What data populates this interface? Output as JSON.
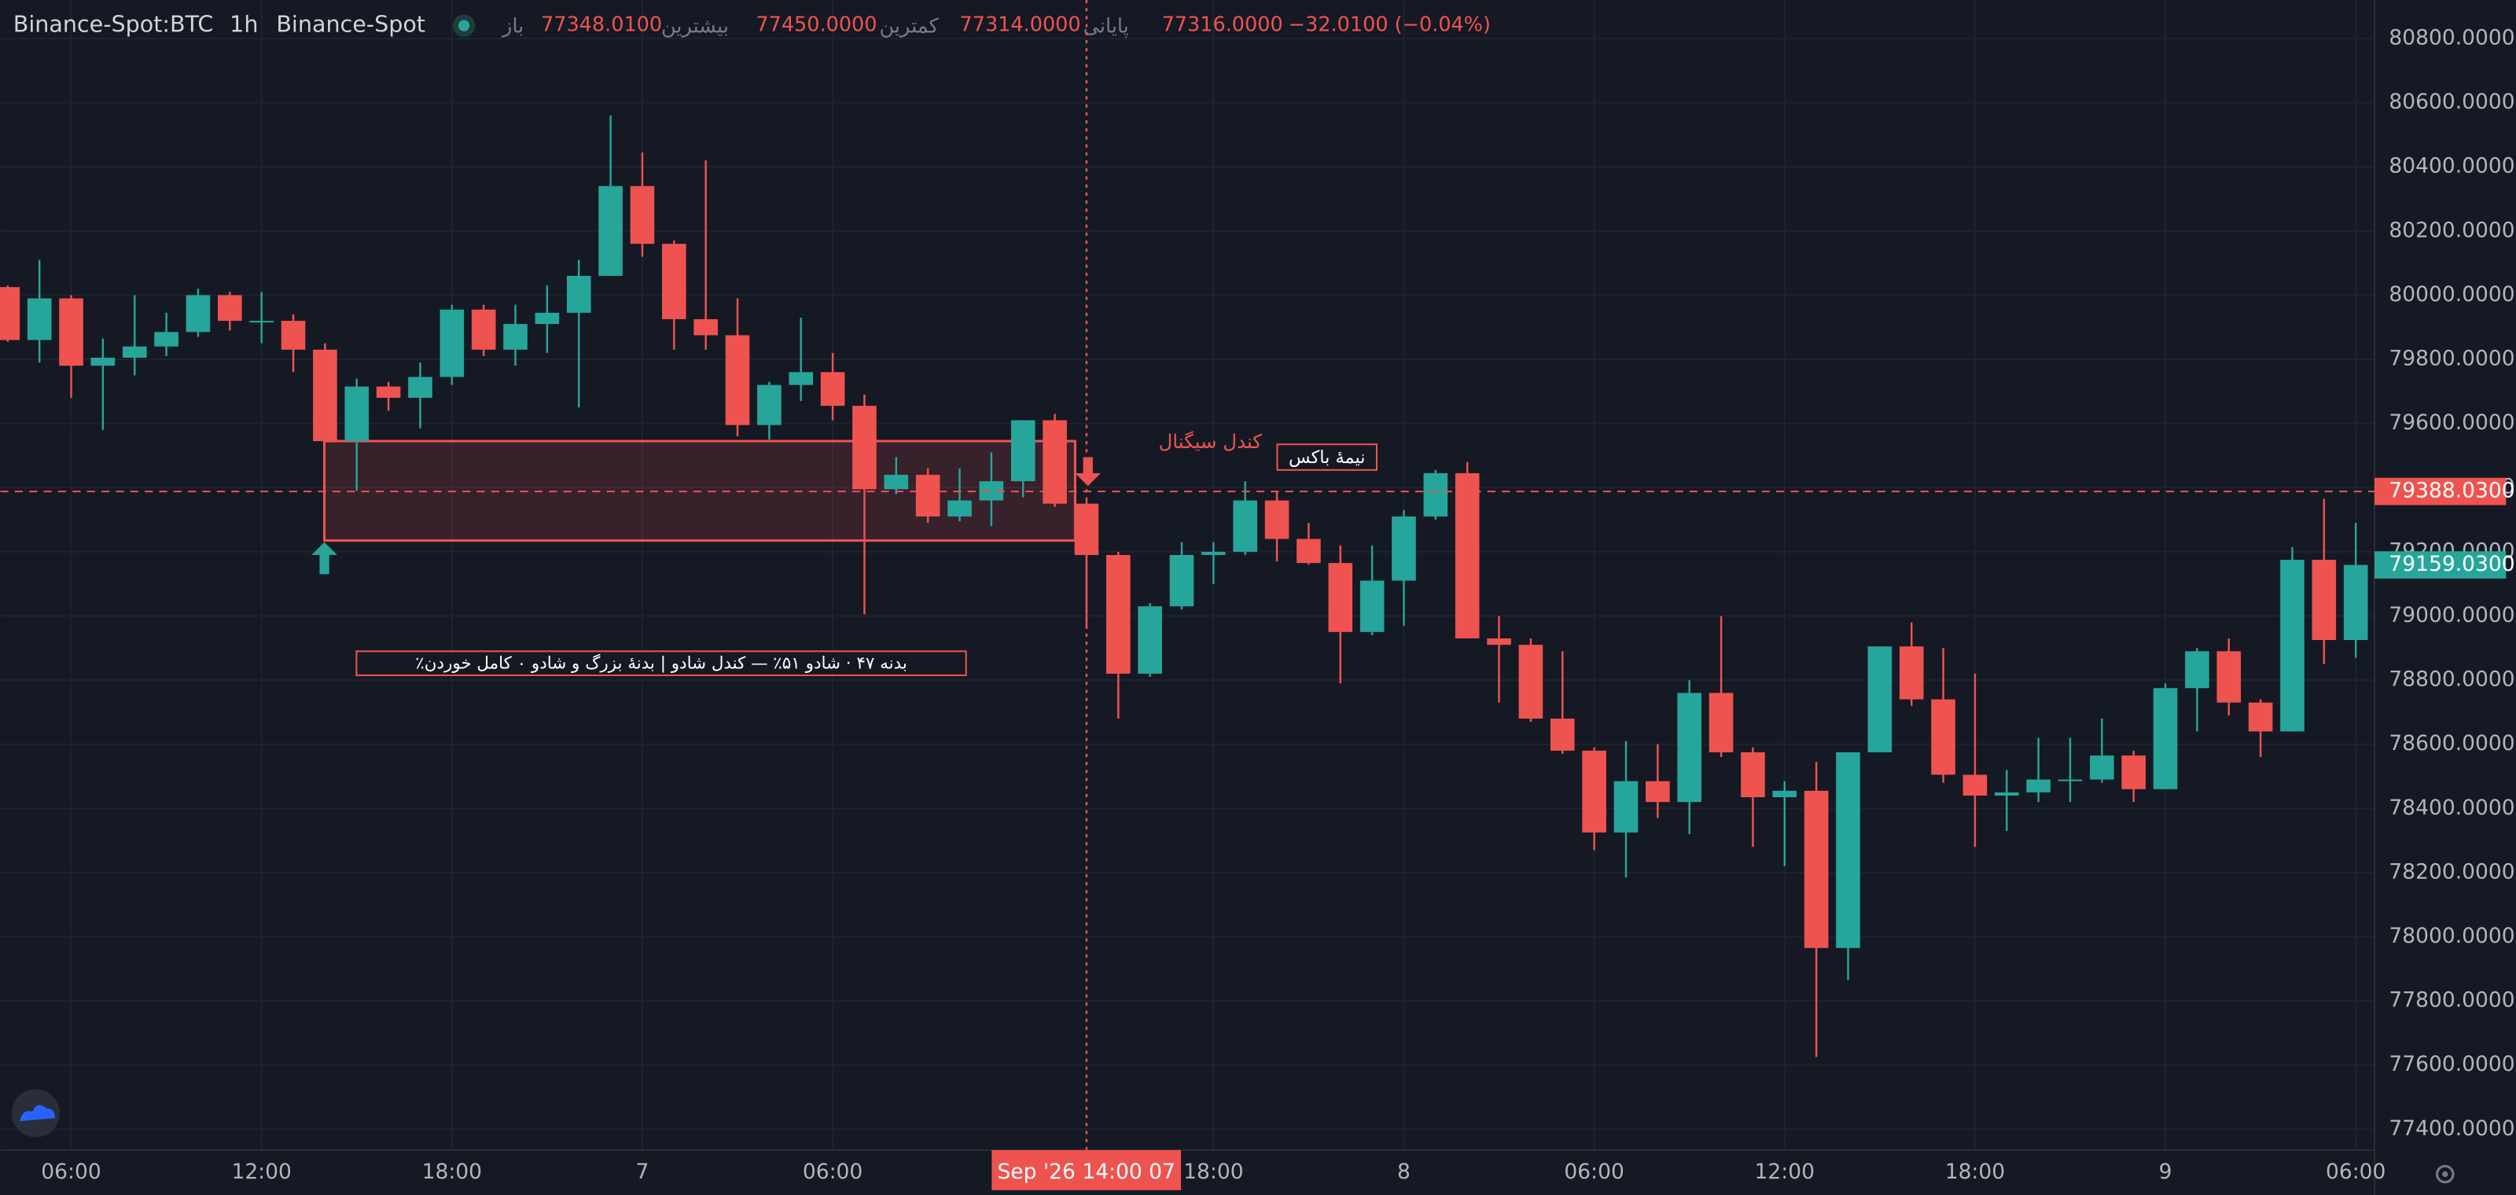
{
  "header": {
    "symbol": "Binance-Spot:BTC",
    "interval": "1h",
    "exchange": "Binance-Spot",
    "open_label": "باز",
    "open": "77348.0100",
    "high_label": "بیشترین",
    "high": "77450.0000",
    "low_label": "کمترین",
    "low": "77314.0000",
    "close_label": "پایانی",
    "close": "77316.0000",
    "change": "−32.0100 (−0.04%)"
  },
  "chart_data": {
    "type": "candlestick",
    "categories": [
      null,
      null,
      "06:00",
      null,
      null,
      null,
      null,
      null,
      "12:00",
      null,
      null,
      null,
      null,
      null,
      "18:00",
      null,
      null,
      null,
      null,
      null,
      "7",
      null,
      null,
      null,
      null,
      null,
      "06:00",
      null,
      null,
      null,
      null,
      null,
      null,
      null,
      null,
      null,
      null,
      null,
      "18:00",
      null,
      null,
      null,
      null,
      null,
      "8",
      null,
      null,
      null,
      null,
      null,
      "06:00",
      null,
      null,
      null,
      null,
      null,
      "12:00",
      null,
      null,
      null,
      null,
      null,
      "18:00",
      null,
      null,
      null,
      null,
      null,
      "9",
      null,
      null,
      null,
      null,
      null,
      "06:00"
    ],
    "open": [
      80025,
      79860,
      79990,
      79780,
      79805,
      79840,
      79885,
      80000,
      79920,
      79920,
      79830,
      79545,
      79715,
      79680,
      79745,
      79955,
      79830,
      79910,
      79945,
      80060,
      80340,
      80160,
      79925,
      79875,
      79595,
      79720,
      79760,
      79655,
      79395,
      79440,
      79310,
      79360,
      79420,
      79610,
      79350,
      79190,
      78820,
      79030,
      79190,
      79200,
      79360,
      79240,
      79165,
      78950,
      79110,
      79310,
      79445,
      78930,
      78910,
      78680,
      78580,
      78325,
      78485,
      78420,
      78760,
      78575,
      78435,
      78455,
      77965,
      78575,
      78905,
      78740,
      78505,
      78440,
      78450,
      78490,
      78490,
      78565,
      78460,
      78775,
      78890,
      78730,
      78640,
      79175,
      78925
    ],
    "high": [
      80030,
      80110,
      80000,
      79865,
      80000,
      79945,
      80020,
      80010,
      80010,
      79940,
      79850,
      79740,
      79730,
      79790,
      79970,
      79970,
      79970,
      80030,
      80110,
      80560,
      80445,
      80170,
      80420,
      79990,
      79730,
      79930,
      79820,
      79690,
      79495,
      79460,
      79460,
      79510,
      79610,
      79630,
      79360,
      79200,
      79040,
      79230,
      79230,
      79420,
      79390,
      79290,
      79220,
      79220,
      79330,
      79455,
      79480,
      79000,
      78930,
      78890,
      78590,
      78610,
      78600,
      78800,
      79000,
      78590,
      78485,
      78545,
      78575,
      78905,
      78980,
      78900,
      78820,
      78520,
      78620,
      78620,
      78680,
      78580,
      78790,
      78900,
      78930,
      78740,
      79215,
      79365,
      79290
    ],
    "low": [
      79855,
      79790,
      79680,
      79580,
      79750,
      79810,
      79870,
      79890,
      79850,
      79760,
      79545,
      79390,
      79640,
      79585,
      79720,
      79810,
      79780,
      79820,
      79650,
      80060,
      80120,
      79830,
      79830,
      79560,
      79550,
      79670,
      79610,
      79005,
      79380,
      79290,
      79295,
      79280,
      79370,
      79340,
      78960,
      78680,
      78810,
      79020,
      79100,
      79190,
      79170,
      79160,
      78790,
      78940,
      78970,
      79300,
      78930,
      78730,
      78670,
      78570,
      78270,
      78185,
      78370,
      78320,
      78560,
      78280,
      78220,
      77625,
      77865,
      78575,
      78720,
      78480,
      78280,
      78330,
      78420,
      78420,
      78480,
      78420,
      78460,
      78640,
      78690,
      78560,
      78640,
      78850,
      78870
    ],
    "close": [
      79860,
      79990,
      79780,
      79805,
      79840,
      79885,
      80000,
      79920,
      79920,
      79830,
      79545,
      79715,
      79680,
      79745,
      79955,
      79830,
      79910,
      79945,
      80060,
      80340,
      80160,
      79925,
      79875,
      79595,
      79720,
      79760,
      79655,
      79395,
      79440,
      79310,
      79360,
      79420,
      79610,
      79350,
      79190,
      78820,
      79030,
      79190,
      79200,
      79360,
      79240,
      79165,
      78950,
      79110,
      79310,
      79445,
      78930,
      78910,
      78680,
      78580,
      78325,
      78485,
      78420,
      78760,
      78575,
      78435,
      78455,
      77965,
      78575,
      78905,
      78740,
      78505,
      78440,
      78450,
      78490,
      78490,
      78565,
      78460,
      78775,
      78890,
      78730,
      78640,
      79175,
      78925,
      79159.03
    ],
    "up_color": "#26a69a",
    "down_color": "#ef5350",
    "ylim": [
      77335,
      80920
    ],
    "yticks": [
      {
        "value": 80800,
        "label": "80800.0000"
      },
      {
        "value": 80600,
        "label": "80600.0000"
      },
      {
        "value": 80400,
        "label": "80400.0000"
      },
      {
        "value": 80200,
        "label": "80200.0000"
      },
      {
        "value": 80000,
        "label": "80000.0000"
      },
      {
        "value": 79800,
        "label": "79800.0000"
      },
      {
        "value": 79600,
        "label": "79600.0000"
      },
      {
        "value": 79400,
        "label": "79400.0000"
      },
      {
        "value": 79200,
        "label": "79200.0000"
      },
      {
        "value": 79000,
        "label": "79000.0000"
      },
      {
        "value": 78800,
        "label": "78800.0000"
      },
      {
        "value": 78600,
        "label": "78600.0000"
      },
      {
        "value": 78400,
        "label": "78400.0000"
      },
      {
        "value": 78200,
        "label": "78200.0000"
      },
      {
        "value": 78000,
        "label": "78000.0000"
      },
      {
        "value": 77800,
        "label": "77800.0000"
      },
      {
        "value": 77600,
        "label": "77600.0000"
      },
      {
        "value": 77400,
        "label": "77400.0000"
      }
    ],
    "grid": true,
    "last_price": {
      "value": 79159.03,
      "label": "79159.0300"
    },
    "crosshair": {
      "price": {
        "value": 79388.03,
        "label": "79388.0300"
      },
      "time": "Sep '26  14:00 07"
    },
    "zone": {
      "top": 79545,
      "bottom": 79235
    },
    "signal_label": "کندل سیگنال",
    "half_label": "نیمهٔ باکس",
    "note": "بدنه ۴۷ · شادو ۵۱٪ — کندل شادو | بدنهٔ بزرگ و شادو ٠ کامل خوردن٪"
  }
}
